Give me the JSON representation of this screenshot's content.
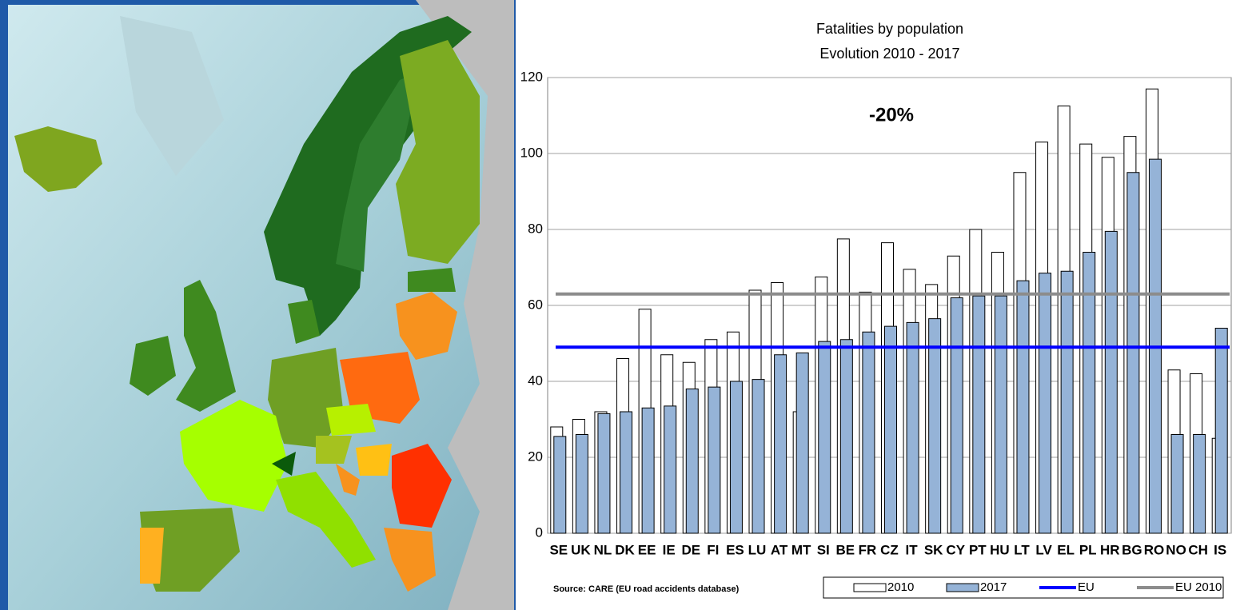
{
  "chart_data": {
    "type": "bar",
    "title": "Fatalities by population",
    "subtitle": "Evolution 2010 - 2017",
    "annotation": "-20%",
    "source": "Source: CARE (EU road accidents database)",
    "categories": [
      "SE",
      "UK",
      "NL",
      "DK",
      "EE",
      "IE",
      "DE",
      "FI",
      "ES",
      "LU",
      "AT",
      "MT",
      "SI",
      "BE",
      "FR",
      "CZ",
      "IT",
      "SK",
      "CY",
      "PT",
      "HU",
      "LT",
      "LV",
      "EL",
      "PL",
      "HR",
      "BG",
      "RO",
      "NO",
      "CH",
      "IS"
    ],
    "series": [
      {
        "name": "2010",
        "color": "#ffffff",
        "values": [
          28,
          30,
          32,
          46,
          59,
          47,
          45,
          51,
          53,
          64,
          66,
          32,
          67.5,
          77.5,
          63.5,
          76.5,
          69.5,
          65.5,
          73,
          80,
          74,
          95,
          103,
          112.5,
          102.5,
          99,
          104.5,
          117,
          43,
          42,
          25
        ]
      },
      {
        "name": "2017",
        "color": "#95b3d7",
        "values": [
          25.5,
          26,
          31.5,
          32,
          33,
          33.5,
          38,
          38.5,
          40,
          40.5,
          47,
          47.5,
          50.5,
          51,
          53,
          54.5,
          55.5,
          56.5,
          62,
          62.5,
          62.5,
          66.5,
          68.5,
          69,
          74,
          79.5,
          95,
          98.5,
          26,
          26,
          54
        ]
      }
    ],
    "lines": [
      {
        "name": "EU",
        "value": 49,
        "color": "#0000ff"
      },
      {
        "name": "EU 2010",
        "value": 63,
        "color": "#8c8c8c"
      }
    ],
    "ylim": [
      0,
      120
    ],
    "yticks": [
      0,
      20,
      40,
      60,
      80,
      100,
      120
    ],
    "grid": true
  }
}
